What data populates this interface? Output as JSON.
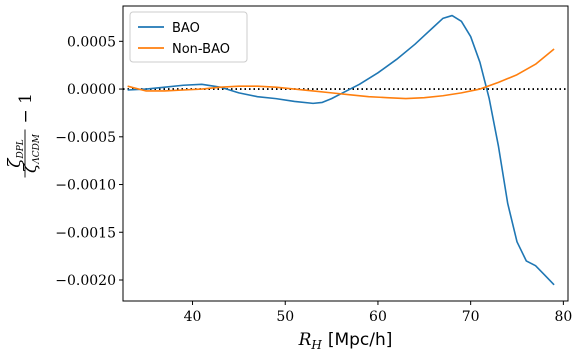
{
  "chart_data": {
    "type": "line",
    "title": "",
    "xlabel": "R_H [Mpc/h]",
    "xlabel_main": "R",
    "xlabel_sub": "H",
    "xlabel_unit": "[Mpc/h]",
    "ylabel": "ζ_DPL / ζ_ΛCDM − 1",
    "ylabel_num": "ζ",
    "ylabel_num_sub": "DPL",
    "ylabel_den": "ζ",
    "ylabel_den_sub": "ΛCDM",
    "ylabel_suffix": "− 1",
    "xlim": [
      32.5,
      80.5
    ],
    "ylim": [
      -0.00222,
      0.00087
    ],
    "xticks": [
      40,
      50,
      60,
      70,
      80
    ],
    "xtick_labels": [
      "40",
      "50",
      "60",
      "70",
      "80"
    ],
    "yticks": [
      0.0005,
      0.0,
      -0.0005,
      -0.001,
      -0.0015,
      -0.002
    ],
    "ytick_labels": [
      "0.0005",
      "0.0000",
      "−0.0005",
      "−0.0010",
      "−0.0015",
      "−0.0020"
    ],
    "grid": false,
    "legend": "top-left",
    "reference_line": {
      "y": 0,
      "style": "dotted",
      "color": "#000000"
    },
    "series": [
      {
        "name": "BAO",
        "color": "#1f77b4",
        "x": [
          33,
          35,
          37,
          39,
          41,
          43,
          45,
          47,
          49,
          51,
          53,
          54,
          55,
          56,
          57,
          58,
          60,
          62,
          64,
          65,
          66,
          67,
          68,
          69,
          70,
          71,
          72,
          73,
          74,
          75,
          76,
          77,
          78,
          79
        ],
        "y": [
          -1e-05,
          0.0,
          2e-05,
          4e-05,
          5e-05,
          2e-05,
          -4e-05,
          -8e-05,
          -0.0001,
          -0.00013,
          -0.00015,
          -0.00014,
          -0.0001,
          -5e-05,
          0.0,
          5e-05,
          0.00017,
          0.00031,
          0.00047,
          0.00056,
          0.00065,
          0.00074,
          0.00077,
          0.00071,
          0.00055,
          0.00028,
          -0.0001,
          -0.0006,
          -0.0012,
          -0.0016,
          -0.0018,
          -0.00185,
          -0.00195,
          -0.00205
        ]
      },
      {
        "name": "Non-BAO",
        "color": "#ff7f0e",
        "x": [
          33,
          35,
          37,
          39,
          41,
          43,
          45,
          47,
          49,
          51,
          53,
          55,
          57,
          59,
          61,
          63,
          65,
          67,
          69,
          71,
          73,
          75,
          77,
          79
        ],
        "y": [
          3e-05,
          -2e-05,
          -2e-05,
          -1e-05,
          0.0,
          2e-05,
          3e-05,
          3e-05,
          2e-05,
          0.0,
          -2e-05,
          -4e-05,
          -6e-05,
          -8e-05,
          -9e-05,
          -0.0001,
          -9e-05,
          -7e-05,
          -4e-05,
          0.0,
          7e-05,
          0.00015,
          0.00026,
          0.00042
        ]
      }
    ]
  }
}
